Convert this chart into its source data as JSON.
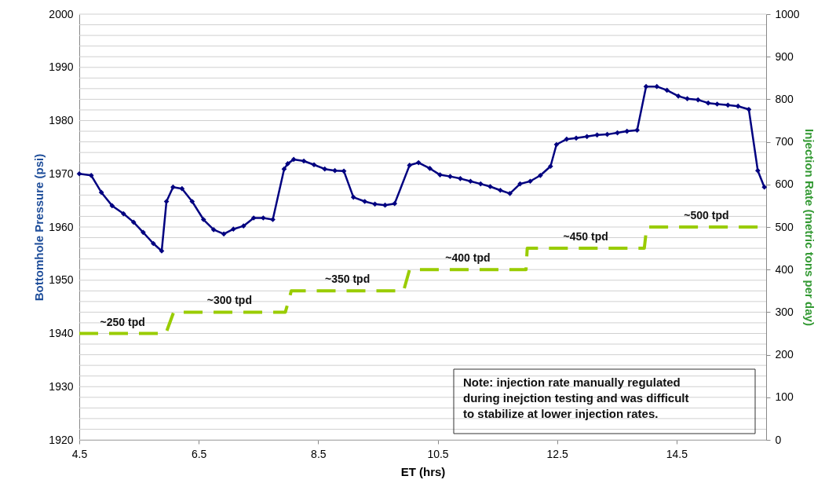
{
  "chart_data": {
    "type": "line",
    "xlabel": "ET (hrs)",
    "ylabel": "Bottomhole Pressure (psi)",
    "y2label": "Injection Rate (metric tons per day)",
    "xlim": [
      4.5,
      16
    ],
    "xticks": [
      4.5,
      6.5,
      8.5,
      10.5,
      12.5,
      14.5
    ],
    "ylim": [
      1920,
      2000
    ],
    "yticks": [
      1920,
      {
        "value": 1922,
        "label": null
      },
      {
        "value": 1924,
        "label": null
      },
      {
        "value": 1926,
        "label": null
      },
      {
        "value": 1928,
        "label": null
      },
      1930,
      {
        "value": 1932,
        "label": null
      },
      {
        "value": 1934,
        "label": null
      },
      {
        "value": 1936,
        "label": null
      },
      {
        "value": 1938,
        "label": null
      },
      1940,
      {
        "value": 1942,
        "label": null
      },
      {
        "value": 1944,
        "label": null
      },
      {
        "value": 1946,
        "label": null
      },
      {
        "value": 1948,
        "label": null
      },
      1950,
      {
        "value": 1952,
        "label": null
      },
      {
        "value": 1954,
        "label": null
      },
      {
        "value": 1956,
        "label": null
      },
      {
        "value": 1958,
        "label": null
      },
      1960,
      {
        "value": 1962,
        "label": null
      },
      {
        "value": 1964,
        "label": null
      },
      {
        "value": 1966,
        "label": null
      },
      {
        "value": 1968,
        "label": null
      },
      1970,
      {
        "value": 1972,
        "label": null
      },
      {
        "value": 1974,
        "label": null
      },
      {
        "value": 1976,
        "label": null
      },
      {
        "value": 1978,
        "label": null
      },
      1980,
      {
        "value": 1982,
        "label": null
      },
      {
        "value": 1984,
        "label": null
      },
      {
        "value": 1986,
        "label": null
      },
      {
        "value": 1988,
        "label": null
      },
      1990,
      {
        "value": 1992,
        "label": null
      },
      {
        "value": 1994,
        "label": null
      },
      {
        "value": 1996,
        "label": null
      },
      {
        "value": 1998,
        "label": null
      },
      2000
    ],
    "y2lim": [
      0,
      1000
    ],
    "y2ticks": [
      0,
      100,
      200,
      300,
      400,
      500,
      600,
      700,
      800,
      900,
      1000
    ],
    "grid": "y",
    "series": [
      {
        "type": "line",
        "color": "#000080",
        "marker": "diamond",
        "line_style": "solid",
        "x": [
          4.5,
          4.7,
          4.87,
          5.05,
          5.24,
          5.41,
          5.57,
          5.74,
          5.88,
          5.96,
          6.07,
          6.22,
          6.39,
          6.58,
          6.75,
          6.92,
          7.08,
          7.25,
          7.42,
          7.58,
          7.74,
          7.93,
          7.99,
          8.09,
          8.26,
          8.43,
          8.61,
          8.78,
          8.93,
          9.09,
          9.28,
          9.45,
          9.62,
          9.78,
          10.03,
          10.18,
          10.37,
          10.54,
          10.71,
          10.88,
          11.05,
          11.22,
          11.38,
          11.55,
          11.71,
          11.88,
          12.05,
          12.22,
          12.39,
          12.49,
          12.66,
          12.82,
          13.0,
          13.17,
          13.34,
          13.51,
          13.67,
          13.84,
          13.99,
          14.17,
          14.34,
          14.53,
          14.68,
          14.86,
          15.03,
          15.18,
          15.36,
          15.53,
          15.71,
          15.86,
          15.97
        ],
        "values": [
          1970.0,
          1969.7,
          1966.5,
          1964.0,
          1962.5,
          1960.9,
          1959.0,
          1956.9,
          1955.5,
          1964.8,
          1967.5,
          1967.2,
          1964.8,
          1961.4,
          1959.5,
          1958.7,
          1959.6,
          1960.2,
          1961.7,
          1961.7,
          1961.4,
          1970.9,
          1971.9,
          1972.7,
          1972.4,
          1971.7,
          1970.9,
          1970.6,
          1970.5,
          1965.6,
          1964.8,
          1964.3,
          1964.1,
          1964.4,
          1971.6,
          1972.1,
          1971.0,
          1969.8,
          1969.5,
          1969.1,
          1968.6,
          1968.1,
          1967.6,
          1966.9,
          1966.3,
          1968.1,
          1968.6,
          1969.7,
          1971.4,
          1975.5,
          1976.5,
          1976.7,
          1977.0,
          1977.3,
          1977.4,
          1977.7,
          1978.0,
          1978.2,
          1986.4,
          1986.4,
          1985.7,
          1984.6,
          1984.1,
          1983.9,
          1983.3,
          1983.1,
          1982.9,
          1982.7,
          1982.1,
          1970.6,
          1967.5
        ]
      },
      {
        "type": "line",
        "color": "#99cc00",
        "marker": "none",
        "line_style": "dashed",
        "axis": "y2",
        "x": [
          4.5,
          5.95,
          6.08,
          7.95,
          8.05,
          9.93,
          10.03,
          11.98,
          12.0,
          13.96,
          14.0,
          16.0
        ],
        "values": [
          250,
          250,
          300,
          300,
          350,
          350,
          400,
          400,
          450,
          450,
          500,
          500
        ]
      }
    ],
    "annotations": [
      "~250 tpd",
      "~300 tpd",
      "~350 tpd",
      "~400 tpd",
      "~450 tpd",
      "~500 tpd",
      "Note: injection rate manually regulated during inejction testing and was difficult to stabilize at lower injection rates."
    ]
  }
}
